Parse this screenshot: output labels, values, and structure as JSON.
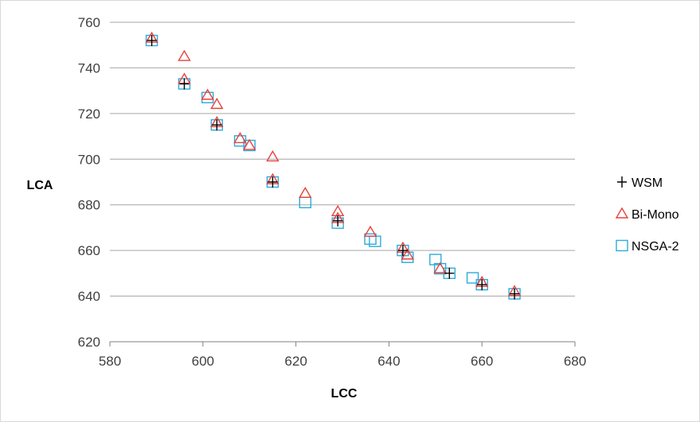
{
  "chart_data": {
    "type": "scatter",
    "title": "",
    "xlabel": "LCC",
    "ylabel": "LCA",
    "xlim": [
      580,
      680
    ],
    "ylim": [
      620,
      760
    ],
    "xticks": [
      580,
      600,
      620,
      640,
      660,
      680
    ],
    "yticks": [
      620,
      640,
      660,
      680,
      700,
      720,
      740,
      760
    ],
    "grid": "horizontal",
    "legend_position": "right",
    "series": [
      {
        "name": "WSM",
        "marker": "plus",
        "color": "#000000",
        "points": [
          [
            589,
            752
          ],
          [
            596,
            733
          ],
          [
            603,
            715
          ],
          [
            615,
            690
          ],
          [
            629,
            673
          ],
          [
            643,
            660
          ],
          [
            653,
            650
          ],
          [
            660,
            645
          ],
          [
            667,
            641
          ]
        ]
      },
      {
        "name": "Bi-Mono",
        "marker": "triangle",
        "color": "#e8413c",
        "points": [
          [
            589,
            753
          ],
          [
            596,
            745
          ],
          [
            596,
            735
          ],
          [
            601,
            728
          ],
          [
            603,
            724
          ],
          [
            603,
            716
          ],
          [
            608,
            709
          ],
          [
            610,
            706
          ],
          [
            615,
            701
          ],
          [
            615,
            691
          ],
          [
            622,
            685
          ],
          [
            629,
            677
          ],
          [
            629,
            674
          ],
          [
            636,
            668
          ],
          [
            643,
            661
          ],
          [
            644,
            658
          ],
          [
            651,
            652
          ],
          [
            660,
            646
          ],
          [
            667,
            642
          ]
        ]
      },
      {
        "name": "NSGA-2",
        "marker": "square",
        "color": "#2eaadc",
        "points": [
          [
            589,
            752
          ],
          [
            596,
            733
          ],
          [
            601,
            727
          ],
          [
            603,
            715
          ],
          [
            608,
            708
          ],
          [
            610,
            706
          ],
          [
            615,
            690
          ],
          [
            622,
            681
          ],
          [
            629,
            672
          ],
          [
            636,
            665
          ],
          [
            637,
            664
          ],
          [
            643,
            660
          ],
          [
            644,
            657
          ],
          [
            650,
            656
          ],
          [
            651,
            652
          ],
          [
            653,
            650
          ],
          [
            658,
            648
          ],
          [
            660,
            645
          ],
          [
            667,
            641
          ]
        ]
      }
    ]
  }
}
